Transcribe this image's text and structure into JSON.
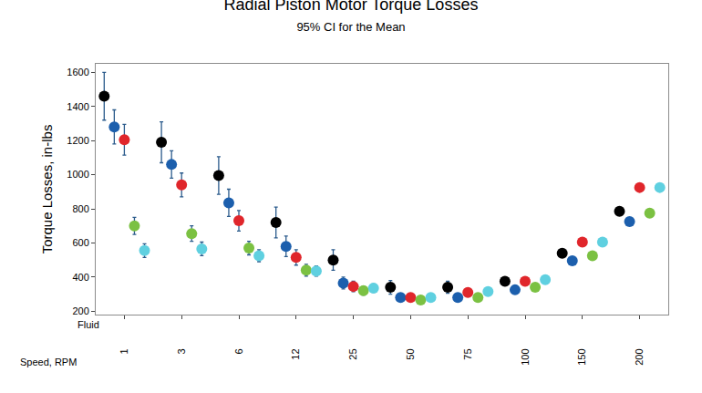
{
  "chart_data": {
    "type": "scatter",
    "title": "Radial Piston Motor Torque Losses",
    "subtitle": "95% CI for the Mean",
    "xlabel": "Speed, RPM",
    "ylabel": "Torque Losses, in-lbs",
    "annotations": [
      "Fluid"
    ],
    "categories": [
      "1",
      "3",
      "6",
      "12",
      "25",
      "50",
      "75",
      "100",
      "150",
      "200"
    ],
    "series": [
      {
        "color": "#000000",
        "values": [
          1460,
          1190,
          995,
          720,
          500,
          340,
          340,
          375,
          540,
          785
        ],
        "error": [
          140,
          120,
          110,
          90,
          60,
          40,
          35,
          15,
          15,
          15
        ]
      },
      {
        "color": "#1c5fad",
        "values": [
          1280,
          1060,
          835,
          580,
          365,
          280,
          280,
          325,
          495,
          725
        ],
        "error": [
          100,
          80,
          80,
          60,
          35,
          20,
          15,
          12,
          12,
          12
        ]
      },
      {
        "color": "#e0262b",
        "values": [
          1205,
          940,
          730,
          515,
          345,
          280,
          310,
          375,
          605,
          925
        ],
        "error": [
          90,
          70,
          60,
          45,
          30,
          15,
          15,
          12,
          12,
          12
        ]
      },
      {
        "color": "#7bc142",
        "values": [
          700,
          655,
          570,
          440,
          320,
          265,
          280,
          340,
          525,
          775
        ],
        "error": [
          50,
          45,
          40,
          35,
          25,
          15,
          15,
          10,
          10,
          10
        ]
      },
      {
        "color": "#5fd0e0",
        "values": [
          555,
          565,
          525,
          435,
          335,
          280,
          315,
          385,
          605,
          925
        ],
        "error": [
          40,
          40,
          35,
          30,
          25,
          15,
          15,
          10,
          10,
          10
        ]
      }
    ],
    "ylim": [
      180,
      1650
    ],
    "yticks": [
      200,
      400,
      600,
      800,
      1000,
      1200,
      1400,
      1600
    ],
    "grid": false,
    "marker": "circle"
  }
}
